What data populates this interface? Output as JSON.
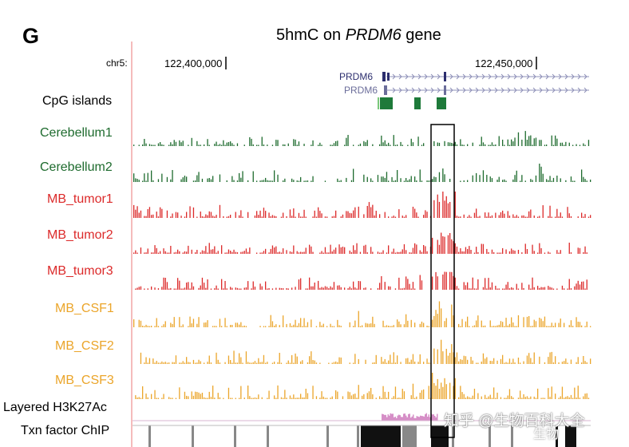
{
  "figure": {
    "panel_letter": "G",
    "title_prefix": "5hmC on ",
    "title_gene": "PRDM6",
    "title_suffix": " gene",
    "chrom": "chr5:",
    "coord_left": "122,400,000",
    "coord_right": "122,450,000",
    "gene_labels": [
      "PRDM6",
      "PRDM6"
    ],
    "watermark": "知乎 @生物百科大全",
    "watermark_small": "生物"
  },
  "tracks": [
    {
      "label": "CpG islands",
      "color": "#000000",
      "kind": "cpg"
    },
    {
      "label": "Cerebellum1",
      "color": "#1e6b2e",
      "bar_color": "#1e6b2e",
      "kind": "signal",
      "seed": 11,
      "amp": 0.45
    },
    {
      "label": "Cerebellum2",
      "color": "#1e6b2e",
      "bar_color": "#1e6b2e",
      "kind": "signal",
      "seed": 23,
      "amp": 0.55
    },
    {
      "label": "MB_tumor1",
      "color": "#dc2a2a",
      "bar_color": "#dc2a2a",
      "kind": "signal",
      "seed": 37,
      "amp": 0.55
    },
    {
      "label": "MB_tumor2",
      "color": "#dc2a2a",
      "bar_color": "#dc2a2a",
      "kind": "signal",
      "seed": 41,
      "amp": 0.45
    },
    {
      "label": "MB_tumor3",
      "color": "#dc2a2a",
      "bar_color": "#dc2a2a",
      "kind": "signal",
      "seed": 53,
      "amp": 0.5
    },
    {
      "label": "MB_CSF1",
      "color": "#eba52a",
      "bar_color": "#eba52a",
      "kind": "signal",
      "seed": 67,
      "amp": 0.5
    },
    {
      "label": "MB_CSF2",
      "color": "#eba52a",
      "bar_color": "#eba52a",
      "kind": "signal",
      "seed": 71,
      "amp": 0.55
    },
    {
      "label": "MB_CSF3",
      "color": "#eba52a",
      "bar_color": "#eba52a",
      "kind": "signal",
      "seed": 83,
      "amp": 0.6
    },
    {
      "label": "Layered H3K27Ac",
      "color": "#000000",
      "kind": "h3k"
    },
    {
      "label": "Txn factor ChIP",
      "color": "#000000",
      "kind": "chip"
    }
  ],
  "colors": {
    "axis_line": "#f2a6a6",
    "gene": "#2c2e6e",
    "gene_light": "#8e90b8",
    "cpg": "#1e7a3a",
    "highlight_box": "#000000",
    "h3k": "#c86ab4",
    "chip_dark": "#111111",
    "chip_mid": "#888888"
  }
}
